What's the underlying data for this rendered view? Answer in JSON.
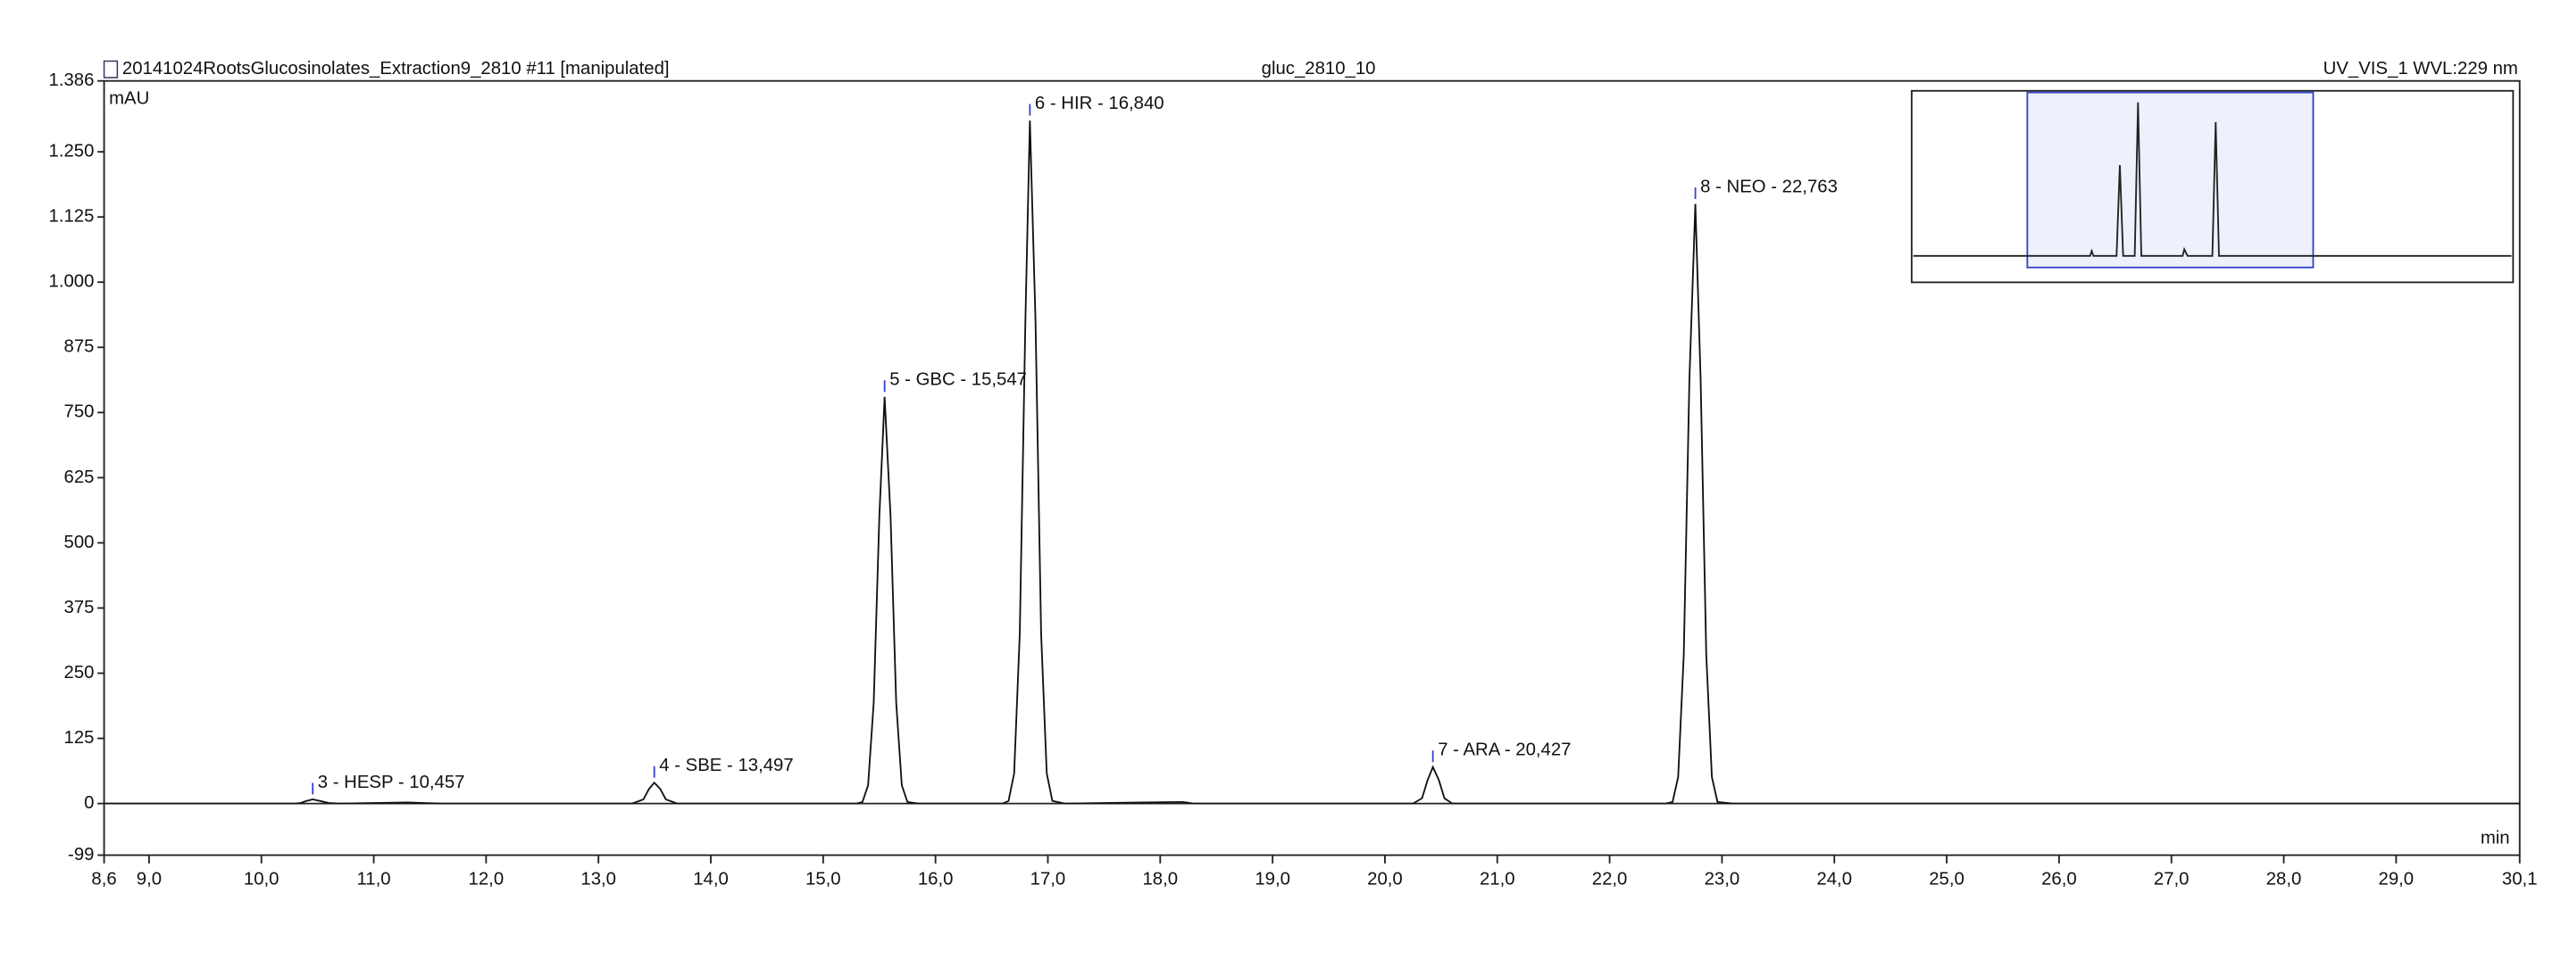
{
  "chart_data": {
    "type": "line",
    "title": "20141024RootsGlucosinolates_Extraction9_2810 #11 [manipulated]",
    "subtitle": "gluc_2810_10",
    "detector": "UV_VIS_1 WVL:229 nm",
    "ylabel": "mAU",
    "xlabel": "min",
    "color": "#111111",
    "x": [
      8.6,
      10.3,
      10.35,
      10.4,
      10.457,
      10.52,
      10.6,
      10.7,
      11.3,
      11.6,
      13.3,
      13.4,
      13.45,
      13.497,
      13.55,
      13.6,
      13.7,
      15.3,
      15.35,
      15.4,
      15.45,
      15.5,
      15.547,
      15.6,
      15.65,
      15.7,
      15.75,
      15.85,
      16.6,
      16.65,
      16.7,
      16.75,
      16.8,
      16.84,
      16.89,
      16.94,
      16.99,
      17.04,
      17.15,
      18.2,
      18.3,
      20.25,
      20.33,
      20.38,
      20.427,
      20.48,
      20.53,
      20.6,
      22.5,
      22.56,
      22.61,
      22.66,
      22.71,
      22.763,
      22.81,
      22.86,
      22.91,
      22.96,
      23.1,
      30.1
    ],
    "values": [
      0,
      0,
      1,
      5,
      8,
      5,
      1,
      0,
      2,
      0,
      0,
      8,
      28,
      40,
      28,
      8,
      0,
      0,
      3,
      35,
      194,
      550,
      780,
      550,
      194,
      35,
      3,
      0,
      0,
      5,
      58,
      326,
      926,
      1310,
      926,
      326,
      58,
      5,
      0,
      3,
      0,
      0,
      10,
      45,
      70,
      45,
      10,
      0,
      0,
      3,
      51,
      286,
      813,
      1150,
      813,
      286,
      51,
      3,
      0,
      0
    ],
    "annotations": [
      {
        "label": "3 - HESP - 10,457",
        "x": 10.457,
        "y": 8
      },
      {
        "label": "4 - SBE - 13,497",
        "x": 13.497,
        "y": 40
      },
      {
        "label": "5 - GBC - 15,547",
        "x": 15.547,
        "y": 780
      },
      {
        "label": "6 - HIR - 16,840",
        "x": 16.84,
        "y": 1310
      },
      {
        "label": "7 - ARA - 20,427",
        "x": 20.427,
        "y": 70
      },
      {
        "label": "8 - NEO - 22,763",
        "x": 22.763,
        "y": 1150
      }
    ],
    "xlim": [
      8.6,
      30.1
    ],
    "xticks": [
      {
        "value": 8.6,
        "label": "8,6"
      },
      {
        "value": 9,
        "label": "9,0"
      },
      {
        "value": 10,
        "label": "10,0"
      },
      {
        "value": 11,
        "label": "11,0"
      },
      {
        "value": 12,
        "label": "12,0"
      },
      {
        "value": 13,
        "label": "13,0"
      },
      {
        "value": 14,
        "label": "14,0"
      },
      {
        "value": 15,
        "label": "15,0"
      },
      {
        "value": 16,
        "label": "16,0"
      },
      {
        "value": 17,
        "label": "17,0"
      },
      {
        "value": 18,
        "label": "18,0"
      },
      {
        "value": 19,
        "label": "19,0"
      },
      {
        "value": 20,
        "label": "20,0"
      },
      {
        "value": 21,
        "label": "21,0"
      },
      {
        "value": 22,
        "label": "22,0"
      },
      {
        "value": 23,
        "label": "23,0"
      },
      {
        "value": 24,
        "label": "24,0"
      },
      {
        "value": 25,
        "label": "25,0"
      },
      {
        "value": 26,
        "label": "26,0"
      },
      {
        "value": 27,
        "label": "27,0"
      },
      {
        "value": 28,
        "label": "28,0"
      },
      {
        "value": 29,
        "label": "29,0"
      },
      {
        "value": 30.1,
        "label": "30,1"
      }
    ],
    "ylim": [
      -99,
      1386
    ],
    "yticks": [
      -99,
      0,
      125,
      250,
      375,
      500,
      625,
      750,
      875,
      {
        "value": 1000,
        "label": "1.000"
      },
      {
        "value": 1125,
        "label": "1.125"
      },
      {
        "value": 1250,
        "label": "1.250"
      },
      {
        "value": 1386,
        "label": "1.386"
      }
    ]
  }
}
